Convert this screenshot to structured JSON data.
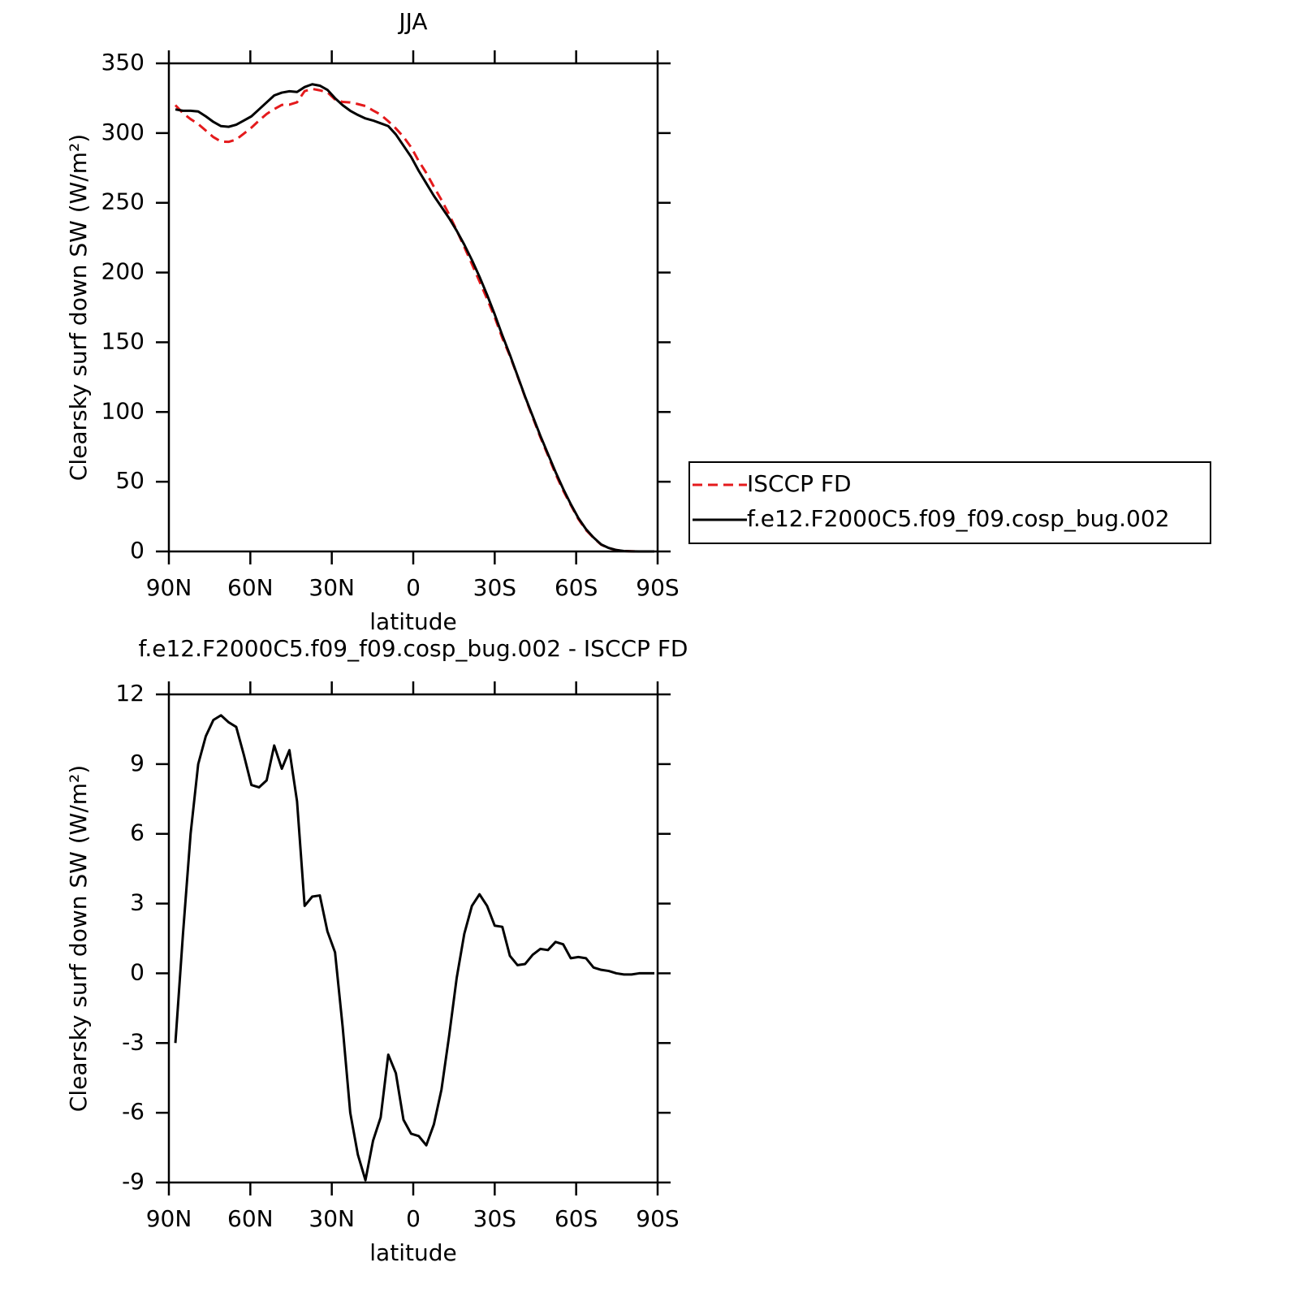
{
  "chart_data": [
    {
      "type": "line",
      "title": "JJA",
      "xlabel": "latitude",
      "ylabel": "Clearsky surf down SW (W/m²)",
      "x": [
        87.6,
        84.8,
        82.0,
        79.2,
        76.4,
        73.6,
        70.8,
        68.0,
        65.2,
        62.4,
        59.6,
        56.8,
        54.0,
        51.2,
        48.4,
        45.6,
        42.8,
        40.0,
        37.2,
        34.4,
        31.6,
        28.8,
        26.0,
        23.2,
        20.4,
        17.6,
        14.8,
        12.0,
        9.2,
        6.4,
        3.6,
        0.8,
        -2.0,
        -4.8,
        -7.6,
        -10.4,
        -13.2,
        -16.0,
        -18.8,
        -21.6,
        -24.4,
        -27.2,
        -30.0,
        -32.8,
        -35.6,
        -38.4,
        -41.2,
        -44.0,
        -46.8,
        -49.6,
        -52.4,
        -55.2,
        -58.0,
        -60.8,
        -63.6,
        -66.4,
        -69.2,
        -72.0,
        -74.8,
        -77.6,
        -80.4,
        -83.2,
        -86.0,
        -88.8
      ],
      "series": [
        {
          "name": "ISCCP FD",
          "color": "#e41a1c",
          "dash": true,
          "values": [
            320,
            314.3,
            310,
            306.5,
            301.8,
            297.1,
            293.9,
            293.7,
            295.4,
            299.6,
            303.9,
            309,
            313.7,
            317.2,
            320.2,
            320.4,
            322.1,
            330.1,
            331.7,
            330.65,
            329.2,
            324.1,
            322.3,
            322,
            320.8,
            319.4,
            316.2,
            313.2,
            308.5,
            303.3,
            297.3,
            289.9,
            280,
            271.4,
            261.5,
            252,
            241.7,
            230.2,
            218.3,
            206.1,
            193.6,
            181.1,
            167.95,
            153,
            140.25,
            125.65,
            110.6,
            96.2,
            81.95,
            69,
            55.65,
            43.75,
            33.35,
            23.3,
            15.35,
            9.75,
            4.85,
            2.4,
            1,
            0.35,
            0.15,
            0,
            0,
            0
          ]
        },
        {
          "name": "f.e12.F2000C5.f09_f09.cosp_bug.002",
          "color": "#000000",
          "dash": false,
          "values": [
            317,
            316,
            316,
            315.5,
            312,
            308,
            305,
            304.5,
            306,
            309,
            312,
            317,
            322,
            327,
            329,
            330,
            329.5,
            333,
            335,
            334,
            331,
            325,
            320,
            316,
            313,
            310.5,
            309,
            307,
            305,
            299,
            291,
            283,
            273,
            264,
            255,
            247,
            239,
            230,
            220,
            209,
            197,
            184,
            170,
            155,
            141,
            126,
            111,
            97,
            83,
            70,
            57,
            45,
            34,
            24,
            16,
            10,
            5,
            2.5,
            1,
            0.3,
            0.1,
            0,
            0,
            0
          ]
        }
      ],
      "xlim": [
        90,
        -90
      ],
      "xticks": [
        {
          "value": 90,
          "label": "90N"
        },
        {
          "value": 60,
          "label": "60N"
        },
        {
          "value": 30,
          "label": "30N"
        },
        0,
        {
          "value": -30,
          "label": "30S"
        },
        {
          "value": -60,
          "label": "60S"
        },
        {
          "value": -90,
          "label": "90S"
        }
      ],
      "ylim": [
        0,
        350
      ],
      "yticks": [
        0,
        50,
        100,
        150,
        200,
        250,
        300,
        350
      ],
      "legend": "right"
    },
    {
      "type": "line",
      "title": "f.e12.F2000C5.f09_f09.cosp_bug.002 - ISCCP FD",
      "xlabel": "latitude",
      "ylabel": "Clearsky surf down SW (W/m²)",
      "x": [
        87.6,
        84.8,
        82.0,
        79.2,
        76.4,
        73.6,
        70.8,
        68.0,
        65.2,
        62.4,
        59.6,
        56.8,
        54.0,
        51.2,
        48.4,
        45.6,
        42.8,
        40.0,
        37.2,
        34.4,
        31.6,
        28.8,
        26.0,
        23.2,
        20.4,
        17.6,
        14.8,
        12.0,
        9.2,
        6.4,
        3.6,
        0.8,
        -2.0,
        -4.8,
        -7.6,
        -10.4,
        -13.2,
        -16.0,
        -18.8,
        -21.6,
        -24.4,
        -27.2,
        -30.0,
        -32.8,
        -35.6,
        -38.4,
        -41.2,
        -44.0,
        -46.8,
        -49.6,
        -52.4,
        -55.2,
        -58.0,
        -60.8,
        -63.6,
        -66.4,
        -69.2,
        -72.0,
        -74.8,
        -77.6,
        -80.4,
        -83.2,
        -86.0,
        -88.8
      ],
      "series": [
        {
          "color": "#000000",
          "dash": false,
          "values": [
            -3.0,
            1.7,
            6.0,
            9.0,
            10.2,
            10.9,
            11.1,
            10.8,
            10.6,
            9.4,
            8.1,
            8.0,
            8.3,
            9.8,
            8.8,
            9.6,
            7.4,
            2.9,
            3.3,
            3.35,
            1.8,
            0.9,
            -2.3,
            -6.0,
            -7.8,
            -8.9,
            -7.2,
            -6.2,
            -3.5,
            -4.3,
            -6.3,
            -6.9,
            -7.0,
            -7.4,
            -6.5,
            -5.0,
            -2.7,
            -0.2,
            1.7,
            2.9,
            3.4,
            2.9,
            2.05,
            2.0,
            0.75,
            0.35,
            0.4,
            0.8,
            1.05,
            1.0,
            1.35,
            1.25,
            0.65,
            0.7,
            0.65,
            0.25,
            0.15,
            0.1,
            0.0,
            -0.05,
            -0.05,
            0.0,
            0.0,
            0.0
          ]
        }
      ],
      "xlim": [
        90,
        -90
      ],
      "xticks": [
        {
          "value": 90,
          "label": "90N"
        },
        {
          "value": 60,
          "label": "60N"
        },
        {
          "value": 30,
          "label": "30N"
        },
        0,
        {
          "value": -30,
          "label": "30S"
        },
        {
          "value": -60,
          "label": "60S"
        },
        {
          "value": -90,
          "label": "90S"
        }
      ],
      "ylim": [
        -9,
        12
      ],
      "yticks": [
        -9,
        -6,
        -3,
        0,
        3,
        6,
        9,
        12
      ]
    }
  ]
}
